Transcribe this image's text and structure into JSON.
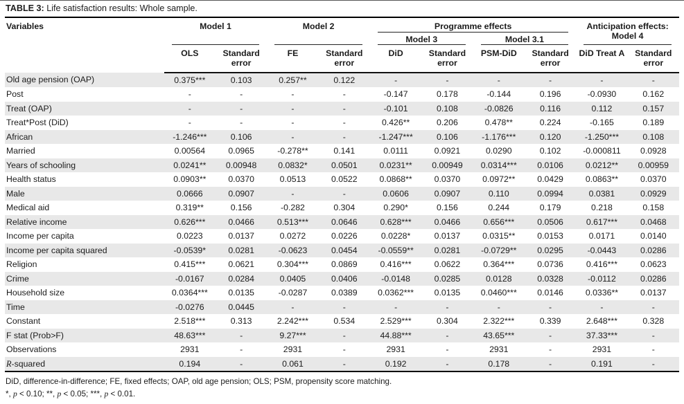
{
  "title": {
    "label": "TABLE 3:",
    "caption": " Life satisfaction results: Whole sample."
  },
  "table": {
    "variables_header": "Variables",
    "groups": [
      {
        "label": "Model 1"
      },
      {
        "label": "Model 2"
      },
      {
        "label": "Programme effects",
        "subgroups": [
          {
            "label": "Model 3"
          },
          {
            "label": "Model 3.1"
          }
        ]
      },
      {
        "label": "Anticipation effects: Model 4"
      }
    ],
    "columns": [
      "OLS",
      "Standard error",
      "FE",
      "Standard error",
      "DiD",
      "Standard error",
      "PSM-DiD",
      "Standard error",
      "DiD Treat A",
      "Standard error"
    ],
    "rows": [
      {
        "variable": "Old age pension (OAP)",
        "values": [
          "0.375***",
          "0.103",
          "0.257**",
          "0.122",
          "-",
          "-",
          "-",
          "-",
          "-",
          "-"
        ]
      },
      {
        "variable": "Post",
        "values": [
          "-",
          "-",
          "-",
          "-",
          "-0.147",
          "0.178",
          "-0.144",
          "0.196",
          "-0.0930",
          "0.162"
        ]
      },
      {
        "variable": "Treat (OAP)",
        "values": [
          "-",
          "-",
          "-",
          "-",
          "-0.101",
          "0.108",
          "-0.0826",
          "0.116",
          "0.112",
          "0.157"
        ]
      },
      {
        "variable": "Treat*Post (DiD)",
        "values": [
          "-",
          "-",
          "-",
          "-",
          "0.426**",
          "0.206",
          "0.478**",
          "0.224",
          "-0.165",
          "0.189"
        ]
      },
      {
        "variable": "African",
        "values": [
          "-1.246***",
          "0.106",
          "-",
          "-",
          "-1.247***",
          "0.106",
          "-1.176***",
          "0.120",
          "-1.250***",
          "0.108"
        ]
      },
      {
        "variable": "Married",
        "values": [
          "0.00564",
          "0.0965",
          "-0.278**",
          "0.141",
          "0.0111",
          "0.0921",
          "0.0290",
          "0.102",
          "-0.000811",
          "0.0928"
        ]
      },
      {
        "variable": "Years of schooling",
        "values": [
          "0.0241**",
          "0.00948",
          "0.0832*",
          "0.0501",
          "0.0231**",
          "0.00949",
          "0.0314***",
          "0.0106",
          "0.0212**",
          "0.00959"
        ]
      },
      {
        "variable": "Health status",
        "values": [
          "0.0903**",
          "0.0370",
          "0.0513",
          "0.0522",
          "0.0868**",
          "0.0370",
          "0.0972**",
          "0.0429",
          "0.0863**",
          "0.0370"
        ]
      },
      {
        "variable": "Male",
        "values": [
          "0.0666",
          "0.0907",
          "-",
          "-",
          "0.0606",
          "0.0907",
          "0.110",
          "0.0994",
          "0.0381",
          "0.0929"
        ]
      },
      {
        "variable": "Medical aid",
        "values": [
          "0.319**",
          "0.156",
          "-0.282",
          "0.304",
          "0.290*",
          "0.156",
          "0.244",
          "0.179",
          "0.218",
          "0.158"
        ]
      },
      {
        "variable": "Relative income",
        "values": [
          "0.626***",
          "0.0466",
          "0.513***",
          "0.0646",
          "0.628***",
          "0.0466",
          "0.656***",
          "0.0506",
          "0.617***",
          "0.0468"
        ]
      },
      {
        "variable": "Income per capita",
        "values": [
          "0.0223",
          "0.0137",
          "0.0272",
          "0.0226",
          "0.0228*",
          "0.0137",
          "0.0315**",
          "0.0153",
          "0.0171",
          "0.0140"
        ]
      },
      {
        "variable": "Income per capita squared",
        "values": [
          "-0.0539*",
          "0.0281",
          "-0.0623",
          "0.0454",
          "-0.0559**",
          "0.0281",
          "-0.0729**",
          "0.0295",
          "-0.0443",
          "0.0286"
        ]
      },
      {
        "variable": "Religion",
        "values": [
          "0.415***",
          "0.0621",
          "0.304***",
          "0.0869",
          "0.416***",
          "0.0622",
          "0.364***",
          "0.0736",
          "0.416***",
          "0.0623"
        ]
      },
      {
        "variable": "Crime",
        "values": [
          "-0.0167",
          "0.0284",
          "0.0405",
          "0.0406",
          "-0.0148",
          "0.0285",
          "0.0128",
          "0.0328",
          "-0.0112",
          "0.0286"
        ]
      },
      {
        "variable": "Household size",
        "values": [
          "0.0364***",
          "0.0135",
          "-0.0287",
          "0.0389",
          "0.0362***",
          "0.0135",
          "0.0460***",
          "0.0146",
          "0.0336**",
          "0.0137"
        ]
      },
      {
        "variable": "Time",
        "values": [
          "-0.0276",
          "0.0445",
          "-",
          "-",
          "-",
          "-",
          "-",
          "-",
          "-",
          "-"
        ]
      },
      {
        "variable": "Constant",
        "values": [
          "2.518***",
          "0.313",
          "2.242***",
          "0.534",
          "2.529***",
          "0.304",
          "2.322***",
          "0.339",
          "2.648***",
          "0.328"
        ]
      },
      {
        "variable": "F stat (Prob>F)",
        "values": [
          "48.63***",
          "-",
          "9.27***",
          "-",
          "44.88***",
          "-",
          "43.65***",
          "-",
          "37.33***",
          "-"
        ]
      },
      {
        "variable": "Observations",
        "values": [
          "2931",
          "-",
          "2931",
          "-",
          "2931",
          "-",
          "2931",
          "-",
          "2931",
          "-"
        ]
      },
      {
        "variable": "R-squared",
        "italic_first": true,
        "values": [
          "0.194",
          "-",
          "0.061",
          "-",
          "0.192",
          "-",
          "0.178",
          "-",
          "0.191",
          "-"
        ]
      }
    ]
  },
  "footnotes": {
    "abbreviations": "DiD, difference-in-difference; FE, fixed effects; OAP, old age pension; OLS; PSM, propensity score matching.",
    "significance_parts": [
      {
        "text": "*, "
      },
      {
        "text": "p",
        "italic": true
      },
      {
        "text": " < 0.10; **, "
      },
      {
        "text": "p",
        "italic": true
      },
      {
        "text": " < 0.05; ***, "
      },
      {
        "text": "p",
        "italic": true
      },
      {
        "text": " < 0.01."
      }
    ]
  }
}
